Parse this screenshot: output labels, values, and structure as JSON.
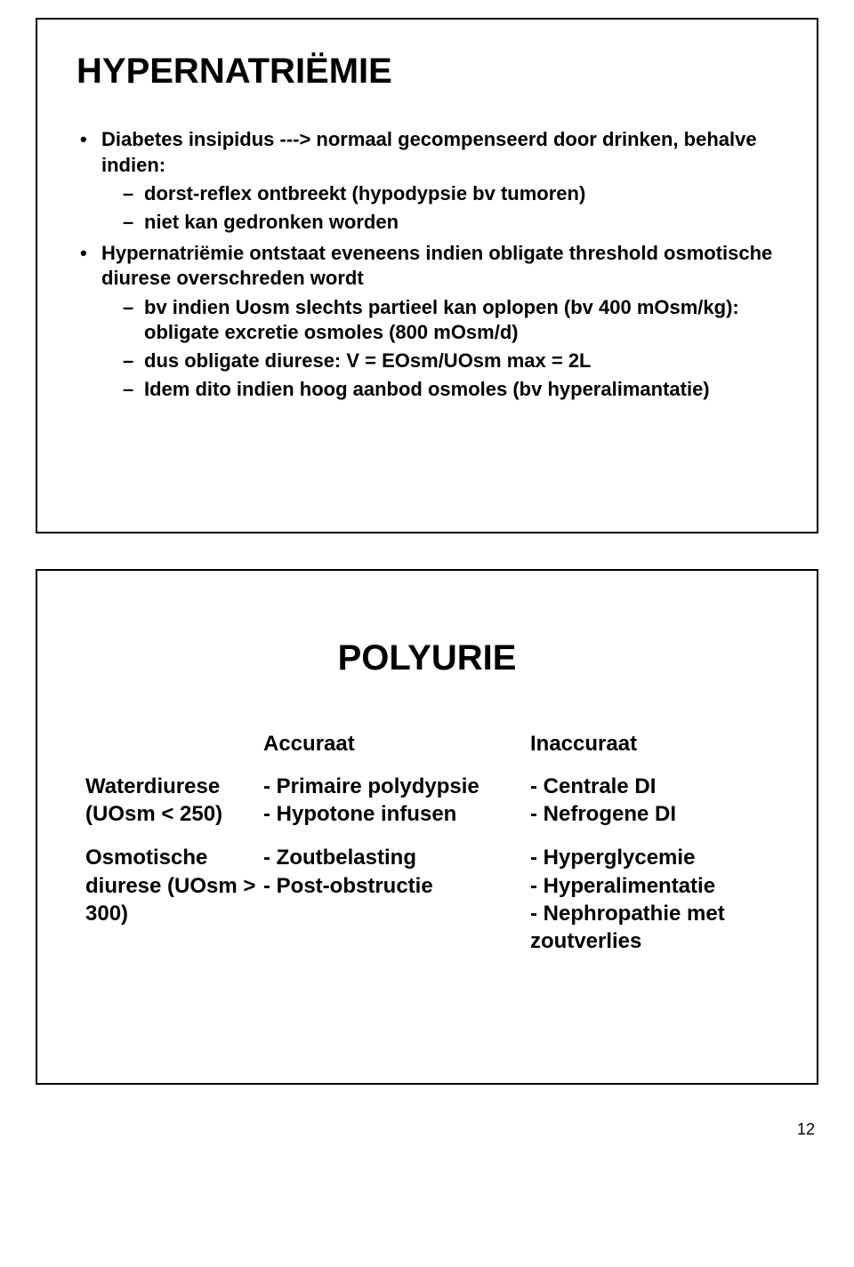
{
  "slide1": {
    "title": "HYPERNATRIËMIE",
    "b1": "Diabetes insipidus ---> normaal gecompenseerd door drinken, behalve indien:",
    "b1_1": "dorst-reflex ontbreekt (hypodypsie bv tumoren)",
    "b1_2": "niet kan gedronken worden",
    "b2": "Hypernatriëmie ontstaat eveneens indien obligate threshold osmotische diurese overschreden wordt",
    "b2_1": "bv indien Uosm slechts partieel kan oplopen (bv 400 mOsm/kg): obligate excretie osmoles (800 mOsm/d)",
    "b2_2": "dus obligate diurese: V = EOsm/UOsm max = 2L",
    "b2_3": "Idem dito indien hoog aanbod osmoles (bv hyperalimantatie)"
  },
  "slide2": {
    "title": "POLYURIE",
    "header_col2": "Accuraat",
    "header_col3": "Inaccuraat",
    "row1_col1": "Waterdiurese (UOsm < 250)",
    "row1_col2": "- Primaire polydypsie\n- Hypotone infusen",
    "row1_col3": "- Centrale DI\n- Nefrogene DI",
    "row2_col1": "Osmotische diurese (UOsm > 300)",
    "row2_col2": "- Zoutbelasting\n- Post-obstructie",
    "row2_col3": "- Hyperglycemie\n- Hyperalimentatie\n- Nephropathie met zoutverlies"
  },
  "page_number": "12"
}
